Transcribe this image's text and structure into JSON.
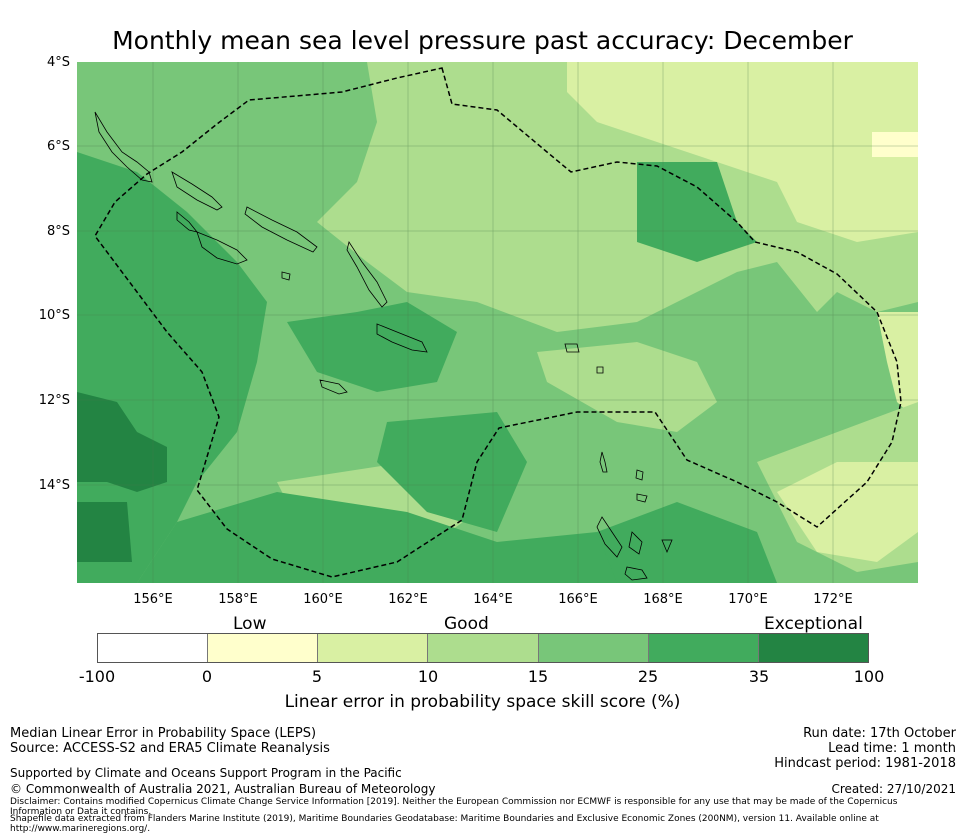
{
  "title": "Monthly mean sea level pressure past accuracy: December",
  "map": {
    "lat_ticks": [
      "4°S",
      "6°S",
      "8°S",
      "10°S",
      "12°S",
      "14°S"
    ],
    "lat_values": [
      -4,
      -6,
      -8,
      -10,
      -12,
      -14
    ],
    "lon_ticks": [
      "156°E",
      "158°E",
      "160°E",
      "162°E",
      "164°E",
      "166°E",
      "168°E",
      "170°E",
      "172°E"
    ],
    "lon_values": [
      156,
      158,
      160,
      162,
      164,
      166,
      168,
      170,
      172
    ],
    "lon_range": [
      154.2,
      174.0
    ],
    "lat_range": [
      -4.0,
      -16.2
    ],
    "grid_color": "#4a7a4a",
    "boundary_color": "#000000",
    "region_colors": {
      "good_light": "#d9f0a3",
      "good": "#addd8e",
      "good_high": "#78c679",
      "exceptional_low": "#41ab5d",
      "exceptional_high": "#238443"
    }
  },
  "colorbar": {
    "category_labels": [
      "Low",
      "Good",
      "Exceptional"
    ],
    "ticks": [
      "-100",
      "0",
      "5",
      "10",
      "15",
      "25",
      "35",
      "100"
    ],
    "colors": [
      "#ffffff",
      "#ffffcc",
      "#d9f0a3",
      "#addd8e",
      "#78c679",
      "#41ab5d",
      "#238443"
    ],
    "label": "Linear error in probability space skill score (%)"
  },
  "footer": {
    "left_line1": "Median Linear Error in Probability Space (LEPS)",
    "left_line2": "Source: ACCESS-S2 and ERA5 Climate Reanalysis",
    "support": "Supported by Climate and Oceans Support Program in the Pacific",
    "copyright": "© Commonwealth of Australia 2021, Australian Bureau of Meteorology",
    "run_date": "Run date: 17th October",
    "lead_time": "Lead time: 1 month",
    "hindcast": "Hindcast period: 1981-2018",
    "created": "Created: 27/10/2021",
    "disclaimer1": "Disclaimer: Contains modified Copernicus Climate Change Service Information [2019]. Neither the European Commission nor ECMWF is responsible for any use that may be made of the Copernicus",
    "disclaimer2": "Information or Data it contains.",
    "disclaimer3": "Shapefile data extracted from Flanders Marine Institute (2019), Maritime Boundaries Geodatabase: Maritime Boundaries and Exclusive Economic Zones (200NM), version 11. Available online at",
    "disclaimer4": "http://www.marineregions.org/."
  }
}
